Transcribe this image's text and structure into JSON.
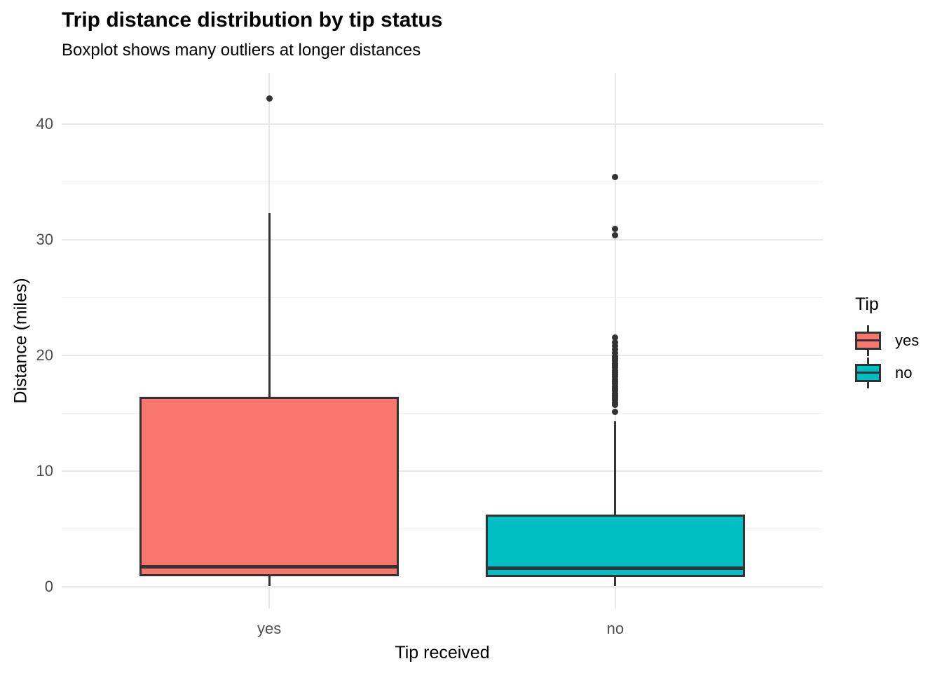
{
  "title": "Trip distance distribution by tip status",
  "subtitle": "Boxplot shows many outliers at longer distances",
  "chart_data": {
    "type": "boxplot",
    "title": "Trip distance distribution by tip status",
    "subtitle": "Boxplot shows many outliers at longer distances",
    "xlabel": "Tip received",
    "ylabel": "Distance (miles)",
    "categories": [
      "yes",
      "no"
    ],
    "x_positions": [
      0.2727,
      0.7273
    ],
    "box_width_frac": 0.341,
    "ylim": [
      -1.9,
      44.4
    ],
    "y_ticks": [
      0,
      10,
      20,
      30,
      40
    ],
    "y_minor_ticks": [
      5,
      15,
      25,
      35
    ],
    "grid": "horizontal major+minor and vertical major, light gray on white, no axis lines or tick marks",
    "legend": {
      "title": "Tip",
      "position": "right",
      "entries": [
        "yes",
        "no"
      ]
    },
    "series": [
      {
        "name": "yes",
        "fill": "#F8766D",
        "stats": {
          "whisker_low": 0.05,
          "q1": 0.9,
          "median": 1.7,
          "q3": 16.4,
          "whisker_high": 32.3
        },
        "outliers": [
          42.2
        ]
      },
      {
        "name": "no",
        "fill": "#00BFC4",
        "stats": {
          "whisker_low": 0.05,
          "q1": 0.85,
          "median": 1.6,
          "q3": 6.2,
          "whisker_high": 14.3
        },
        "outliers": [
          35.4,
          30.9,
          30.4,
          21.5,
          21.1,
          20.8,
          20.5,
          20.2,
          19.9,
          19.7,
          19.5,
          19.3,
          19.1,
          18.9,
          18.7,
          18.5,
          18.3,
          18.1,
          17.9,
          17.7,
          17.5,
          17.3,
          17.1,
          16.9,
          16.7,
          16.5,
          16.3,
          16.1,
          15.9,
          15.7,
          15.1
        ]
      }
    ],
    "style": {
      "stroke": "#333333",
      "grid_major": "#E8E8E8",
      "grid_minor": "#F1F1F1",
      "tick_label_color": "#4D4D4D",
      "text_color": "#000000",
      "background": "#FFFFFF"
    }
  }
}
